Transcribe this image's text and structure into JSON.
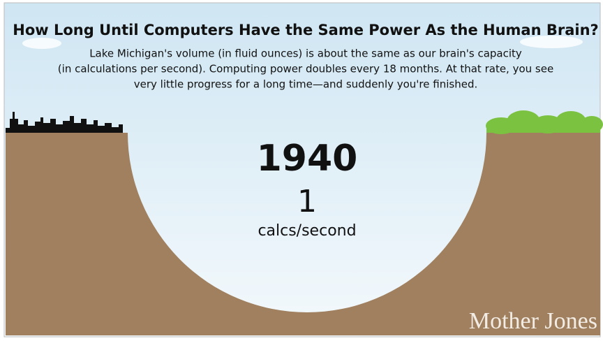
{
  "title": "How Long Until Computers Have the Same Power As the Human Brain?",
  "description": [
    "Lake Michigan's volume (in fluid ounces) is about the same as our brain's capacity",
    "(in calculations per second). Computing power doubles every 18 months. At that rate, you see",
    "very little progress for a long time—and suddenly you're finished."
  ],
  "year": "1940",
  "value": 1,
  "unit": "calcs/second",
  "brand": "Mother Jones"
}
